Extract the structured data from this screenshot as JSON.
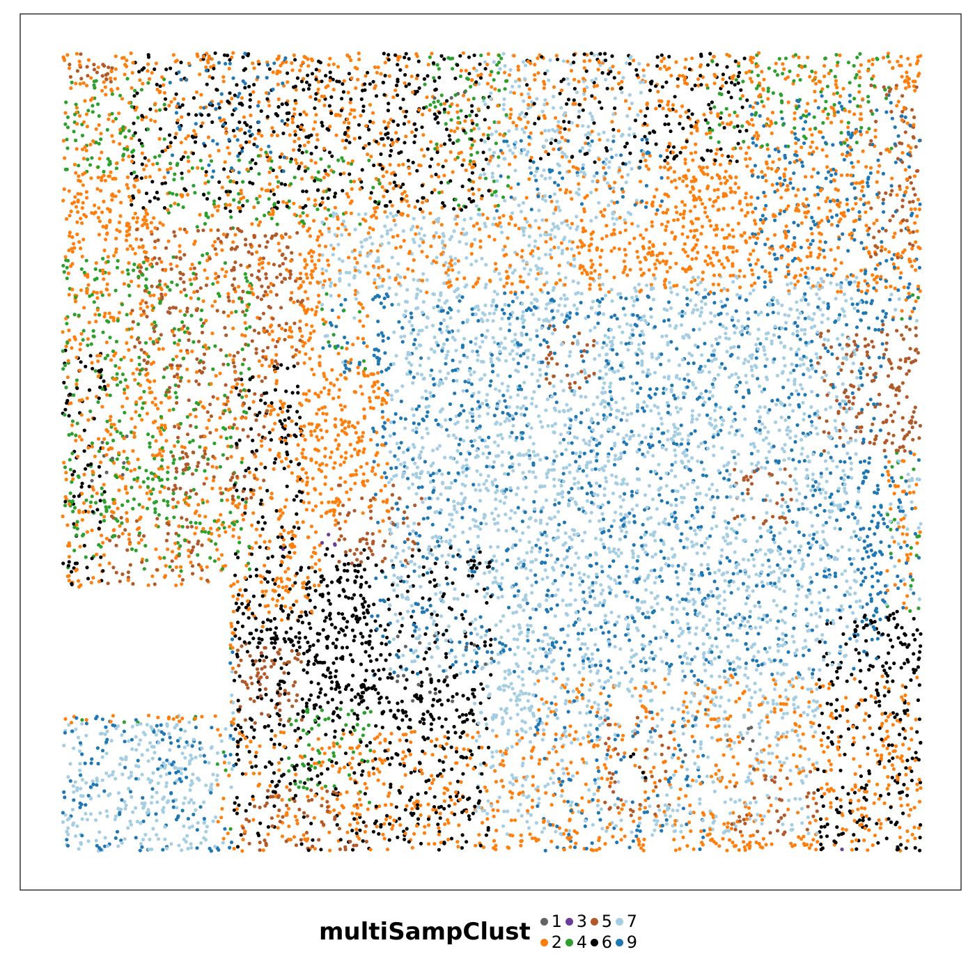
{
  "chart_data": {
    "type": "scatter",
    "title": "",
    "xlabel": "",
    "ylabel": "",
    "axes_visible": false,
    "grid": false,
    "legend": {
      "title": "multiSampClust",
      "placement": "bottom",
      "entries": [
        {
          "label": "1",
          "color": "#636363"
        },
        {
          "label": "2",
          "color": "#ff7f0e"
        },
        {
          "label": "3",
          "color": "#6a3d9a"
        },
        {
          "label": "4",
          "color": "#2ca02c"
        },
        {
          "label": "5",
          "color": "#b15928"
        },
        {
          "label": "6",
          "color": "#000000"
        },
        {
          "label": "7",
          "color": "#a6cee3"
        },
        {
          "label": "9",
          "color": "#1f78b4"
        }
      ]
    },
    "series": [
      {
        "name": "1",
        "color": "#636363",
        "regions": [
          [
            0.4,
            0.02,
            0.08,
            0.05
          ],
          [
            0.38,
            0.72,
            0.12,
            0.1
          ],
          [
            0.7,
            0.84,
            0.12,
            0.08
          ],
          [
            0.02,
            0.48,
            0.06,
            0.06
          ]
        ],
        "density": 0.12
      },
      {
        "name": "2",
        "color": "#ff7f0e",
        "regions": [
          [
            0.0,
            0.0,
            1.0,
            0.3
          ],
          [
            0.0,
            0.3,
            0.3,
            0.42
          ],
          [
            0.18,
            0.4,
            0.2,
            0.2
          ],
          [
            0.55,
            0.78,
            0.45,
            0.22
          ],
          [
            0.2,
            0.85,
            0.35,
            0.15
          ]
        ],
        "density": 0.6
      },
      {
        "name": "3",
        "color": "#6a3d9a",
        "regions": [
          [
            0.5,
            0.0,
            0.1,
            0.04
          ],
          [
            0.25,
            0.58,
            0.08,
            0.05
          ],
          [
            0.88,
            0.96,
            0.05,
            0.04
          ]
        ],
        "density": 0.02
      },
      {
        "name": "4",
        "color": "#2ca02c",
        "regions": [
          [
            0.0,
            0.03,
            0.12,
            0.12
          ],
          [
            0.12,
            0.12,
            0.25,
            0.1
          ],
          [
            0.0,
            0.25,
            0.22,
            0.4
          ],
          [
            0.42,
            0.0,
            0.1,
            0.2
          ],
          [
            0.75,
            0.0,
            0.22,
            0.12
          ],
          [
            0.26,
            0.82,
            0.1,
            0.12
          ]
        ],
        "density": 0.5
      },
      {
        "name": "5",
        "color": "#b15928",
        "regions": [
          [
            0.0,
            0.0,
            0.06,
            0.04
          ],
          [
            0.08,
            0.22,
            0.2,
            0.18
          ],
          [
            0.12,
            0.38,
            0.12,
            0.18
          ],
          [
            0.05,
            0.58,
            0.12,
            0.12
          ],
          [
            0.32,
            0.54,
            0.1,
            0.1
          ],
          [
            0.56,
            0.34,
            0.06,
            0.08
          ],
          [
            0.88,
            0.34,
            0.12,
            0.16
          ],
          [
            0.94,
            0.04,
            0.06,
            0.22
          ],
          [
            0.2,
            0.74,
            0.08,
            0.1
          ],
          [
            0.21,
            0.92,
            0.15,
            0.08
          ],
          [
            0.63,
            0.82,
            0.08,
            0.14
          ],
          [
            0.78,
            0.9,
            0.1,
            0.08
          ],
          [
            0.78,
            0.52,
            0.07,
            0.07
          ]
        ],
        "density": 0.7
      },
      {
        "name": "6",
        "color": "#000000",
        "regions": [
          [
            0.08,
            0.0,
            0.42,
            0.2
          ],
          [
            0.54,
            0.0,
            0.26,
            0.14
          ],
          [
            0.0,
            0.37,
            0.05,
            0.32
          ],
          [
            0.2,
            0.39,
            0.08,
            0.32
          ],
          [
            0.2,
            0.62,
            0.3,
            0.38
          ],
          [
            0.88,
            0.7,
            0.12,
            0.3
          ],
          [
            0.66,
            0.86,
            0.03,
            0.06
          ]
        ],
        "density": 0.55
      },
      {
        "name": "7",
        "color": "#a6cee3",
        "regions": [
          [
            0.38,
            0.28,
            0.55,
            0.5
          ],
          [
            0.48,
            0.6,
            0.4,
            0.38
          ],
          [
            0.0,
            0.84,
            0.18,
            0.16
          ],
          [
            0.48,
            0.0,
            0.2,
            0.22
          ],
          [
            0.3,
            0.2,
            0.3,
            0.1
          ]
        ],
        "density": 0.7
      },
      {
        "name": "9",
        "color": "#1f78b4",
        "regions": [
          [
            0.36,
            0.3,
            0.6,
            0.48
          ],
          [
            0.0,
            0.84,
            0.18,
            0.16
          ],
          [
            0.8,
            0.05,
            0.2,
            0.25
          ],
          [
            0.12,
            0.0,
            0.14,
            0.16
          ],
          [
            0.5,
            0.1,
            0.2,
            0.1
          ],
          [
            0.55,
            0.75,
            0.2,
            0.25
          ]
        ],
        "density": 0.35
      }
    ],
    "point_count": 14000
  }
}
